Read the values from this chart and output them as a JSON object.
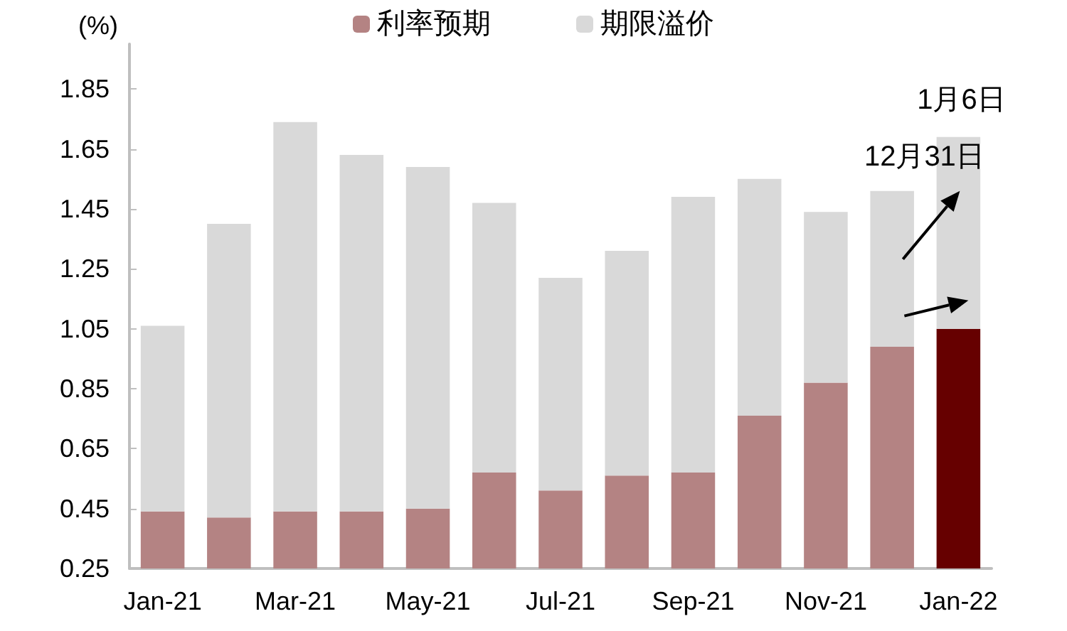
{
  "chart_data": {
    "type": "bar",
    "stacked": true,
    "ylabel": "(%)",
    "categories": [
      "Jan-21",
      null,
      "Mar-21",
      null,
      "May-21",
      null,
      "Jul-21",
      null,
      "Sep-21",
      null,
      "Nov-21",
      null,
      "Jan-22"
    ],
    "series": [
      {
        "name": "利率预期",
        "color": "#b48383",
        "colors": [
          "#b48383",
          "#b48383",
          "#b48383",
          "#b48383",
          "#b48383",
          "#b48383",
          "#b48383",
          "#b48383",
          "#b48383",
          "#b48383",
          "#b48383",
          "#b48383",
          "#660000"
        ],
        "values": [
          0.44,
          0.42,
          0.44,
          0.44,
          0.45,
          0.57,
          0.51,
          0.56,
          0.57,
          0.76,
          0.87,
          0.99,
          1.05
        ]
      },
      {
        "name": "期限溢价",
        "color": "#d9d9d9",
        "values": [
          0.62,
          0.98,
          1.3,
          1.19,
          1.14,
          0.9,
          0.71,
          0.75,
          0.92,
          0.79,
          0.57,
          0.52,
          0.64
        ]
      }
    ],
    "ylim": [
      0.25,
      2.0
    ],
    "yticks": [
      0.25,
      0.45,
      0.65,
      0.85,
      1.05,
      1.25,
      1.45,
      1.65,
      1.85
    ],
    "grid": false,
    "legend": "top",
    "annotations": [
      "1月6日",
      "12月31日"
    ]
  }
}
